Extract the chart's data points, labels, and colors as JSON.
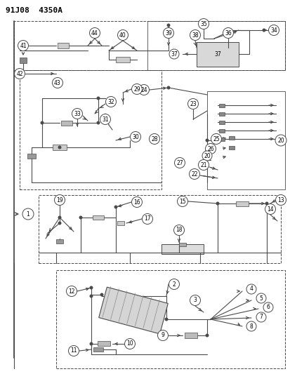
{
  "title": "91J08  4350A",
  "bg_color": "#ffffff",
  "lc": "#4a4a4a",
  "tc": "#000000",
  "fig_width": 4.14,
  "fig_height": 5.33,
  "dpi": 100
}
